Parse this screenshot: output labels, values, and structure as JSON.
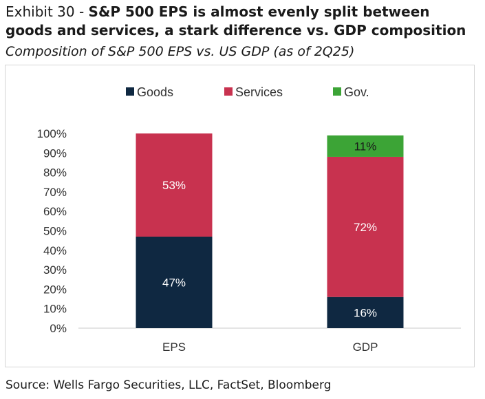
{
  "header": {
    "exhibit_label": "Exhibit 30 - ",
    "title_bold": "S&P 500 EPS is almost evenly split between goods and services, a stark difference vs. GDP composition",
    "subtitle": "Composition of S&P 500 EPS vs. US GDP (as of 2Q25)"
  },
  "footer": {
    "source": "Source: Wells Fargo Securities, LLC, FactSet, Bloomberg"
  },
  "chart_data": {
    "type": "bar",
    "stacked": true,
    "categories": [
      "EPS",
      "GDP"
    ],
    "series": [
      {
        "name": "Goods",
        "values": [
          47,
          16
        ],
        "labels": [
          "47%",
          "16%"
        ],
        "color": "#0f2841",
        "label_color": "#ffffff"
      },
      {
        "name": "Services",
        "values": [
          53,
          72
        ],
        "labels": [
          "53%",
          "72%"
        ],
        "color": "#c8324f",
        "label_color": "#ffffff"
      },
      {
        "name": "Gov.",
        "values": [
          0,
          11
        ],
        "labels": [
          "",
          "11%"
        ],
        "color": "#3ca436",
        "label_color": "#1a1a1a"
      }
    ],
    "y_ticks": [
      "0%",
      "10%",
      "20%",
      "30%",
      "40%",
      "50%",
      "60%",
      "70%",
      "80%",
      "90%",
      "100%"
    ],
    "ylim": [
      0,
      100
    ],
    "grid": false,
    "legend_position": "top",
    "title": "",
    "xlabel": "",
    "ylabel": ""
  }
}
